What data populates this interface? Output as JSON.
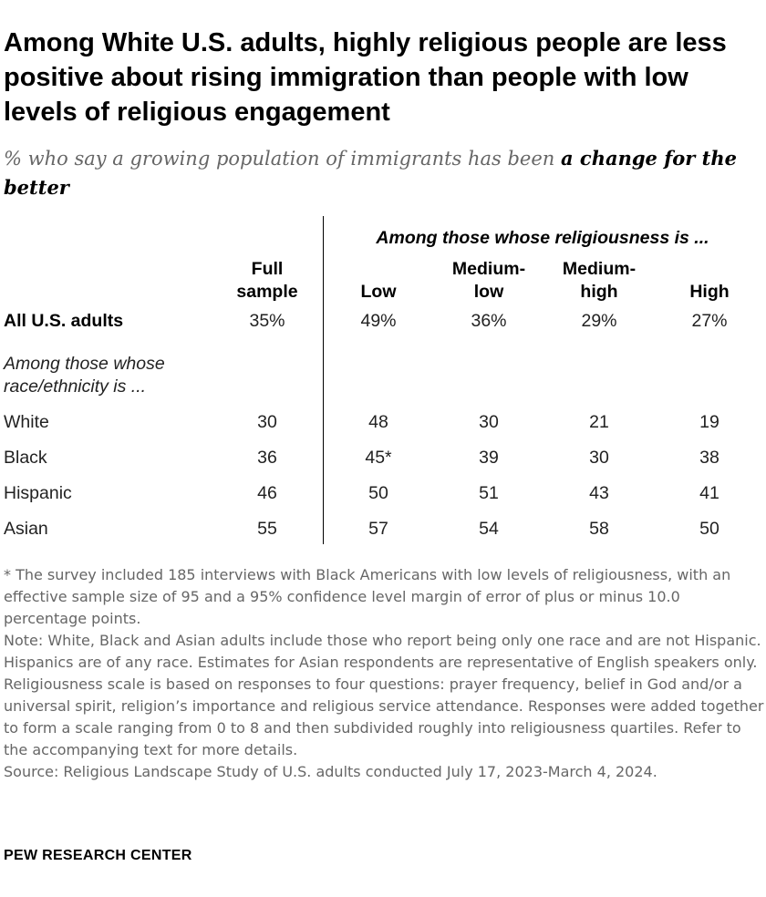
{
  "title": "Among White U.S. adults, highly religious people are less positive about rising immigration than people with low levels of religious engagement",
  "subtitle": {
    "prefix": "% who say a growing population of immigrants has been ",
    "emphasis": "a change for the better"
  },
  "chart_data": {
    "type": "table",
    "spanning_header": "Among those whose religiousness is ...",
    "columns": [
      {
        "line1": "Full",
        "line2": "sample"
      },
      {
        "line1": "",
        "line2": "Low"
      },
      {
        "line1": "Medium-",
        "line2": "low"
      },
      {
        "line1": "Medium-",
        "line2": "high"
      },
      {
        "line1": "",
        "line2": "High"
      }
    ],
    "all_row": {
      "label": "All U.S. adults",
      "values": [
        "35%",
        "49%",
        "36%",
        "29%",
        "27%"
      ]
    },
    "group_header": {
      "line1": "Among those whose",
      "line2": "race/ethnicity is ..."
    },
    "rows": [
      {
        "label": "White",
        "values": [
          "30",
          "48",
          "30",
          "21",
          "19"
        ]
      },
      {
        "label": "Black",
        "values": [
          "36",
          "45*",
          "39",
          "30",
          "38"
        ]
      },
      {
        "label": "Hispanic",
        "values": [
          "46",
          "50",
          "51",
          "43",
          "41"
        ]
      },
      {
        "label": "Asian",
        "values": [
          "55",
          "57",
          "54",
          "58",
          "50"
        ]
      }
    ]
  },
  "footnote": "* The survey included 185 interviews with Black Americans with low levels of religiousness, with an effective sample size of 95 and a 95% confidence level margin of error of plus or minus 10.0 percentage points.",
  "note": "Note: White, Black and Asian adults include those who report being only one race and are not Hispanic. Hispanics are of any race. Estimates for Asian respondents are representative of English speakers only. Religiousness scale is based on responses to four questions: prayer frequency, belief in God and/or a universal spirit, religion’s importance and religious service attendance. Responses were added together to form a scale ranging from 0 to 8 and then subdivided roughly into religiousness quartiles. Refer to the accompanying text for more details.",
  "source": "Source: Religious Landscape Study of U.S. adults conducted July 17, 2023-March 4, 2024.",
  "brand": "PEW RESEARCH CENTER"
}
